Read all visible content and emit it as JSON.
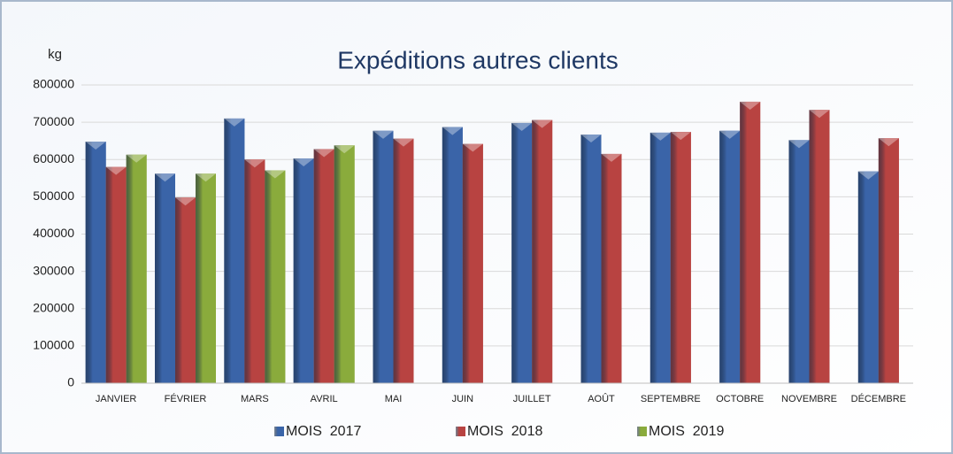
{
  "chart_data": {
    "type": "bar",
    "title": "Expéditions autres clients",
    "y_label": "kg",
    "categories": [
      "JANVIER",
      "FÉVRIER",
      "MARS",
      "AVRIL",
      "MAI",
      "JUIN",
      "JUILLET",
      "AOÛT",
      "SEPTEMBRE",
      "OCTOBRE",
      "NOVEMBRE",
      "DÉCEMBRE"
    ],
    "series": [
      {
        "name": "MOIS  2017",
        "color": "#3a64a8",
        "values": [
          648000,
          562000,
          710000,
          603000,
          677000,
          687000,
          698000,
          667000,
          672000,
          677000,
          652000,
          568000
        ]
      },
      {
        "name": "MOIS  2018",
        "color": "#b84341",
        "values": [
          580000,
          498000,
          600000,
          628000,
          656000,
          642000,
          706000,
          615000,
          674000,
          755000,
          733000,
          657000
        ]
      },
      {
        "name": "MOIS  2019",
        "color": "#8aab3c",
        "values": [
          613000,
          562000,
          571000,
          638000,
          null,
          null,
          null,
          null,
          null,
          null,
          null,
          null
        ]
      }
    ],
    "ylim": [
      0,
      800000
    ],
    "yticks": [
      0,
      100000,
      200000,
      300000,
      400000,
      500000,
      600000,
      700000,
      800000
    ],
    "grid": true,
    "legend": "bottom"
  }
}
